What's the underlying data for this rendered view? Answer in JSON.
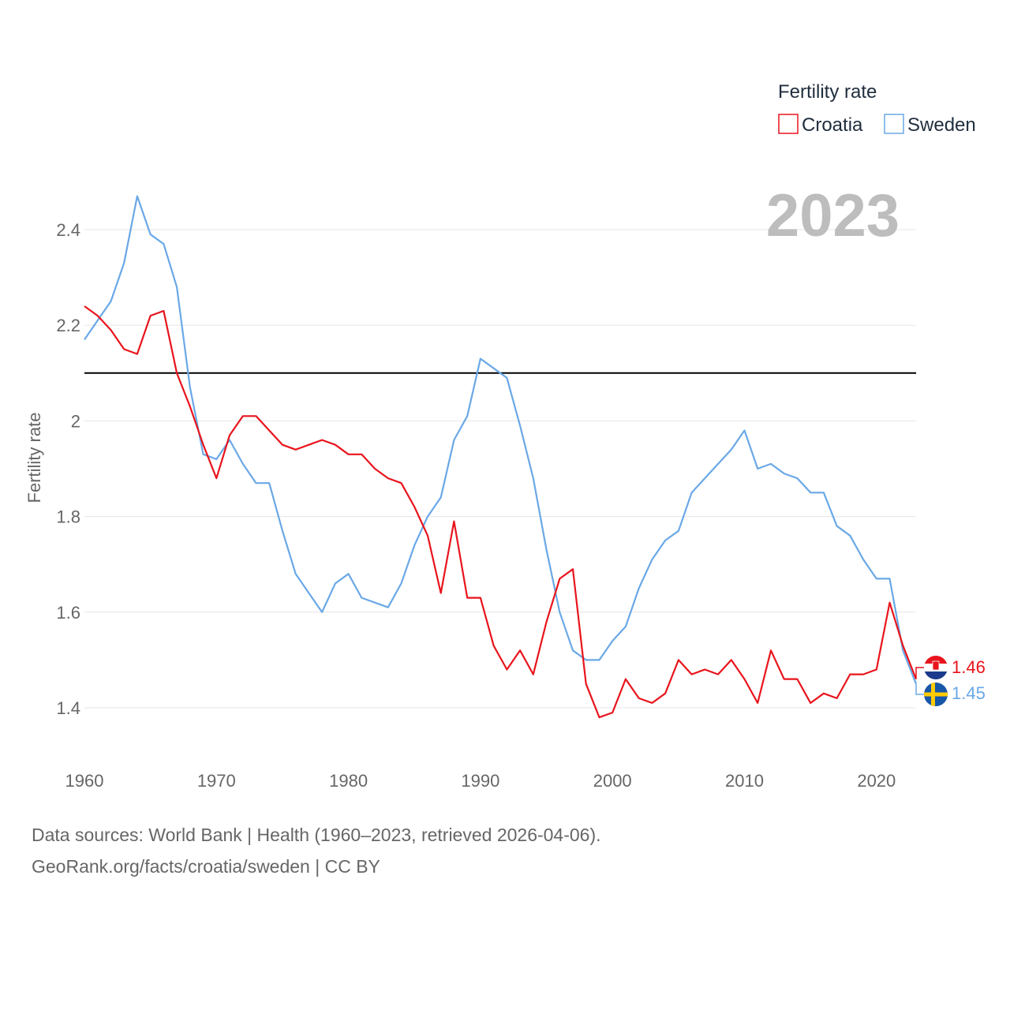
{
  "colors": {
    "croatia": "#e8141c",
    "sweden": "#6aa8e6",
    "reference": "#000000"
  },
  "legend": {
    "title": "Fertility rate",
    "items": [
      "Croatia",
      "Sweden"
    ]
  },
  "year_label": "2023",
  "end_labels": {
    "croatia": "1.46",
    "sweden": "1.45"
  },
  "footer": {
    "line1": "Data sources: World Bank | Health (1960–2023, retrieved 2026-04-06).",
    "line2": "GeoRank.org/facts/croatia/sweden | CC BY"
  },
  "chart_data": {
    "type": "line",
    "title": "",
    "xlabel": "",
    "ylabel": "Fertility rate",
    "xlim": [
      1960,
      2023
    ],
    "ylim": [
      1.3,
      2.5
    ],
    "x_ticks": [
      1960,
      1970,
      1980,
      1990,
      2000,
      2010,
      2020
    ],
    "y_ticks": [
      1.4,
      1.6,
      1.8,
      2,
      2.2,
      2.4
    ],
    "y_tick_labels": [
      "1.4",
      "1.6",
      "1.8",
      "2",
      "2.2",
      "2.4"
    ],
    "x_tick_labels": [
      "1960",
      "1970",
      "1980",
      "1990",
      "2000",
      "2010",
      "2020"
    ],
    "reference_line": 2.1,
    "x": [
      1960,
      1961,
      1962,
      1963,
      1964,
      1965,
      1966,
      1967,
      1968,
      1969,
      1970,
      1971,
      1972,
      1973,
      1974,
      1975,
      1976,
      1977,
      1978,
      1979,
      1980,
      1981,
      1982,
      1983,
      1984,
      1985,
      1986,
      1987,
      1988,
      1989,
      1990,
      1991,
      1992,
      1993,
      1994,
      1995,
      1996,
      1997,
      1998,
      1999,
      2000,
      2001,
      2002,
      2003,
      2004,
      2005,
      2006,
      2007,
      2008,
      2009,
      2010,
      2011,
      2012,
      2013,
      2014,
      2015,
      2016,
      2017,
      2018,
      2019,
      2020,
      2021,
      2022,
      2023
    ],
    "series": [
      {
        "name": "Croatia",
        "values": [
          2.24,
          2.22,
          2.19,
          2.15,
          2.14,
          2.22,
          2.23,
          2.1,
          2.03,
          1.95,
          1.88,
          1.97,
          2.01,
          2.01,
          1.98,
          1.95,
          1.94,
          1.95,
          1.96,
          1.95,
          1.93,
          1.93,
          1.9,
          1.88,
          1.87,
          1.82,
          1.76,
          1.64,
          1.79,
          1.63,
          1.63,
          1.53,
          1.48,
          1.52,
          1.47,
          1.58,
          1.67,
          1.69,
          1.45,
          1.38,
          1.39,
          1.46,
          1.42,
          1.41,
          1.43,
          1.5,
          1.47,
          1.48,
          1.47,
          1.5,
          1.46,
          1.41,
          1.52,
          1.46,
          1.46,
          1.41,
          1.43,
          1.42,
          1.47,
          1.47,
          1.48,
          1.62,
          1.53,
          1.46
        ]
      },
      {
        "name": "Sweden",
        "values": [
          2.17,
          2.21,
          2.25,
          2.33,
          2.47,
          2.39,
          2.37,
          2.28,
          2.07,
          1.93,
          1.92,
          1.96,
          1.91,
          1.87,
          1.87,
          1.77,
          1.68,
          1.64,
          1.6,
          1.66,
          1.68,
          1.63,
          1.62,
          1.61,
          1.66,
          1.74,
          1.8,
          1.84,
          1.96,
          2.01,
          2.13,
          2.11,
          2.09,
          1.99,
          1.88,
          1.73,
          1.6,
          1.52,
          1.5,
          1.5,
          1.54,
          1.57,
          1.65,
          1.71,
          1.75,
          1.77,
          1.85,
          1.88,
          1.91,
          1.94,
          1.98,
          1.9,
          1.91,
          1.89,
          1.88,
          1.85,
          1.85,
          1.78,
          1.76,
          1.71,
          1.67,
          1.67,
          1.52,
          1.45
        ]
      }
    ]
  }
}
